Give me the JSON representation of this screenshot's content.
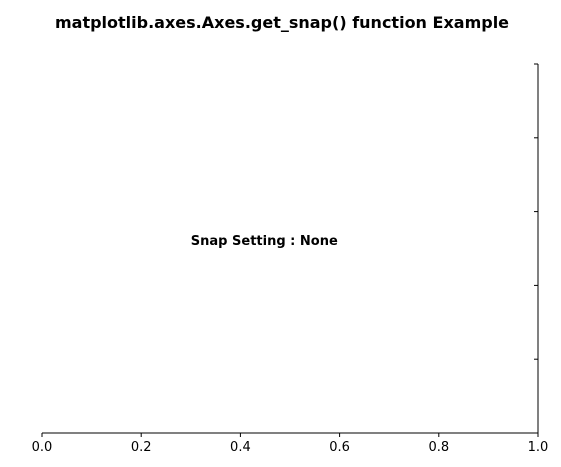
{
  "chart_data": {
    "type": "line",
    "title": "matplotlib.axes.Axes.get_snap() function Example",
    "xlabel": "",
    "ylabel": "",
    "xlim": [
      0.0,
      1.0
    ],
    "ylim": [
      0.0,
      1.0
    ],
    "x_ticks": [
      0.0,
      0.2,
      0.4,
      0.6,
      0.8,
      1.0
    ],
    "x_tick_labels": [
      "0.0",
      "0.2",
      "0.4",
      "0.6",
      "0.8",
      "1.0"
    ],
    "y_ticks": [
      0.2,
      0.4,
      0.6,
      0.8,
      1.0
    ],
    "y_tick_labels": [],
    "series": [],
    "grid": false,
    "spines_visible": [
      "bottom",
      "right"
    ],
    "annotations": [
      {
        "text": "Snap Setting : None",
        "x": 0.3,
        "y": 0.51
      }
    ]
  }
}
